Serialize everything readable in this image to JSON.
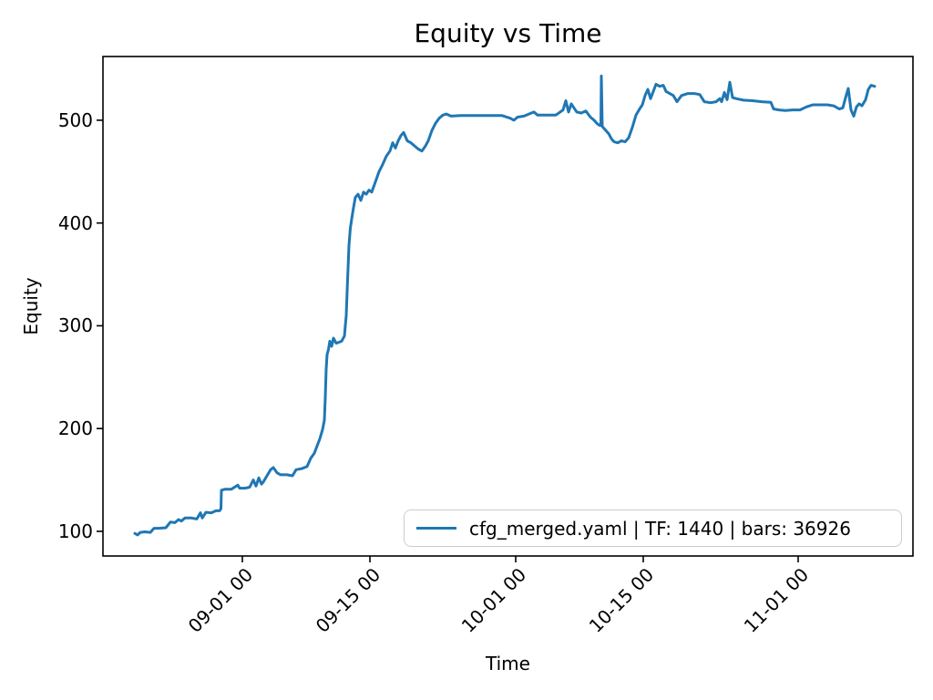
{
  "figure": {
    "title": "Equity vs Time",
    "xlabel": "Time",
    "ylabel": "Equity",
    "legend": {
      "label": "cfg_merged.yaml | TF: 1440 | bars: 36926",
      "line_color": "#1f77b4",
      "border_color": "#cccccc"
    },
    "colors": {
      "line": "#1f77b4",
      "spine": "#000000",
      "background": "#ffffff"
    }
  },
  "chart_data": {
    "type": "line",
    "title": "Equity vs Time",
    "xlabel": "Time",
    "ylabel": "Equity",
    "grid": false,
    "legend_position": "lower right",
    "x_unit": "days relative to 09-01 00:00",
    "xlim": [
      -15.3,
      73.6
    ],
    "ylim": [
      76,
      562
    ],
    "x_ticks": [
      {
        "pos": 0,
        "label": "09-01 00"
      },
      {
        "pos": 14,
        "label": "09-15 00"
      },
      {
        "pos": 30,
        "label": "10-01 00"
      },
      {
        "pos": 44,
        "label": "10-15 00"
      },
      {
        "pos": 61,
        "label": "11-01 00"
      }
    ],
    "y_ticks": [
      100,
      200,
      300,
      400,
      500
    ],
    "series": [
      {
        "name": "cfg_merged.yaml | TF: 1440 | bars: 36926",
        "color": "#1f77b4",
        "points": [
          [
            -11.8,
            98
          ],
          [
            -11.5,
            96.5
          ],
          [
            -11.2,
            99
          ],
          [
            -10.7,
            99.5
          ],
          [
            -10.1,
            99
          ],
          [
            -9.7,
            103
          ],
          [
            -9.2,
            103
          ],
          [
            -8.4,
            103.5
          ],
          [
            -7.9,
            109
          ],
          [
            -7.4,
            108.5
          ],
          [
            -7.0,
            111.5
          ],
          [
            -6.7,
            110
          ],
          [
            -6.3,
            113
          ],
          [
            -5.6,
            113
          ],
          [
            -5.0,
            112
          ],
          [
            -4.6,
            118
          ],
          [
            -4.4,
            113
          ],
          [
            -4.0,
            118.5
          ],
          [
            -3.4,
            118
          ],
          [
            -2.9,
            120
          ],
          [
            -2.5,
            120
          ],
          [
            -2.35,
            122
          ],
          [
            -2.3,
            140
          ],
          [
            -1.9,
            141
          ],
          [
            -1.2,
            141
          ],
          [
            -0.5,
            145
          ],
          [
            -0.3,
            142
          ],
          [
            0.3,
            142
          ],
          [
            0.8,
            143
          ],
          [
            1.2,
            150
          ],
          [
            1.5,
            144
          ],
          [
            1.8,
            152
          ],
          [
            2.1,
            146
          ],
          [
            2.3,
            148
          ],
          [
            2.7,
            154
          ],
          [
            3.1,
            160
          ],
          [
            3.4,
            162
          ],
          [
            3.8,
            157
          ],
          [
            4.2,
            155
          ],
          [
            4.9,
            155
          ],
          [
            5.5,
            154
          ],
          [
            5.9,
            160
          ],
          [
            6.5,
            161
          ],
          [
            7.1,
            163
          ],
          [
            7.5,
            171
          ],
          [
            7.9,
            176
          ],
          [
            8.2,
            183
          ],
          [
            8.5,
            190
          ],
          [
            8.8,
            199
          ],
          [
            9.0,
            208
          ],
          [
            9.1,
            230
          ],
          [
            9.2,
            258
          ],
          [
            9.3,
            272
          ],
          [
            9.45,
            277
          ],
          [
            9.6,
            285
          ],
          [
            9.8,
            280
          ],
          [
            10.0,
            288
          ],
          [
            10.3,
            283
          ],
          [
            10.6,
            284
          ],
          [
            10.9,
            285
          ],
          [
            11.2,
            290
          ],
          [
            11.4,
            310
          ],
          [
            11.55,
            345
          ],
          [
            11.7,
            378
          ],
          [
            11.85,
            395
          ],
          [
            12.0,
            404
          ],
          [
            12.2,
            415
          ],
          [
            12.4,
            425
          ],
          [
            12.7,
            428
          ],
          [
            13.0,
            422
          ],
          [
            13.3,
            430
          ],
          [
            13.6,
            428
          ],
          [
            13.9,
            432
          ],
          [
            14.2,
            430
          ],
          [
            14.6,
            440
          ],
          [
            15.0,
            450
          ],
          [
            15.4,
            457
          ],
          [
            15.8,
            465
          ],
          [
            16.2,
            470
          ],
          [
            16.5,
            478
          ],
          [
            16.8,
            473
          ],
          [
            17.1,
            480
          ],
          [
            17.4,
            485
          ],
          [
            17.7,
            488
          ],
          [
            18.1,
            480
          ],
          [
            18.5,
            478
          ],
          [
            18.9,
            475
          ],
          [
            19.3,
            472
          ],
          [
            19.7,
            470
          ],
          [
            20.1,
            475
          ],
          [
            20.4,
            480
          ],
          [
            20.8,
            490
          ],
          [
            21.2,
            497
          ],
          [
            21.6,
            502
          ],
          [
            22.0,
            505
          ],
          [
            22.4,
            506
          ],
          [
            22.9,
            504
          ],
          [
            24.0,
            504.5
          ],
          [
            25.5,
            504.5
          ],
          [
            27.0,
            504.5
          ],
          [
            28.5,
            504.5
          ],
          [
            29.4,
            502
          ],
          [
            29.8,
            500
          ],
          [
            30.2,
            503
          ],
          [
            30.9,
            504
          ],
          [
            32.0,
            508
          ],
          [
            32.4,
            505
          ],
          [
            33.4,
            505
          ],
          [
            34.4,
            505
          ],
          [
            35.2,
            510
          ],
          [
            35.5,
            519
          ],
          [
            35.8,
            508
          ],
          [
            36.1,
            516
          ],
          [
            36.4,
            512
          ],
          [
            36.7,
            508
          ],
          [
            37.2,
            507
          ],
          [
            37.7,
            509
          ],
          [
            38.2,
            503
          ],
          [
            38.6,
            500
          ],
          [
            38.9,
            497
          ],
          [
            39.2,
            495
          ],
          [
            39.35,
            495
          ],
          [
            39.4,
            543
          ],
          [
            39.5,
            494
          ],
          [
            39.9,
            490
          ],
          [
            40.2,
            487
          ],
          [
            40.5,
            482
          ],
          [
            40.8,
            479
          ],
          [
            41.2,
            478
          ],
          [
            41.6,
            480
          ],
          [
            42.0,
            479
          ],
          [
            42.4,
            483
          ],
          [
            42.8,
            493
          ],
          [
            43.2,
            505
          ],
          [
            43.6,
            511
          ],
          [
            43.9,
            515
          ],
          [
            44.2,
            524
          ],
          [
            44.5,
            530
          ],
          [
            44.8,
            521
          ],
          [
            45.1,
            528
          ],
          [
            45.4,
            535
          ],
          [
            45.8,
            533
          ],
          [
            46.2,
            534
          ],
          [
            46.5,
            528
          ],
          [
            46.9,
            526
          ],
          [
            47.3,
            524
          ],
          [
            47.7,
            518
          ],
          [
            48.2,
            524
          ],
          [
            48.9,
            526
          ],
          [
            49.6,
            526
          ],
          [
            50.2,
            525
          ],
          [
            50.7,
            518
          ],
          [
            51.4,
            517
          ],
          [
            52.0,
            518
          ],
          [
            52.4,
            521
          ],
          [
            52.6,
            518
          ],
          [
            52.9,
            527
          ],
          [
            53.2,
            520
          ],
          [
            53.5,
            537
          ],
          [
            53.8,
            522
          ],
          [
            54.2,
            521
          ],
          [
            55.0,
            519.5
          ],
          [
            56.0,
            519
          ],
          [
            57.0,
            518
          ],
          [
            58.0,
            517.5
          ],
          [
            58.3,
            511
          ],
          [
            58.9,
            510
          ],
          [
            59.6,
            509.5
          ],
          [
            60.4,
            510
          ],
          [
            61.2,
            510
          ],
          [
            61.9,
            513
          ],
          [
            62.6,
            515
          ],
          [
            63.4,
            515
          ],
          [
            64.2,
            515
          ],
          [
            64.9,
            514
          ],
          [
            65.5,
            511
          ],
          [
            65.9,
            512
          ],
          [
            66.3,
            525
          ],
          [
            66.5,
            531
          ],
          [
            66.8,
            510
          ],
          [
            67.1,
            504
          ],
          [
            67.4,
            513
          ],
          [
            67.7,
            516
          ],
          [
            68.0,
            514
          ],
          [
            68.4,
            520
          ],
          [
            68.7,
            530
          ],
          [
            69.0,
            534
          ],
          [
            69.4,
            533
          ]
        ]
      }
    ]
  }
}
